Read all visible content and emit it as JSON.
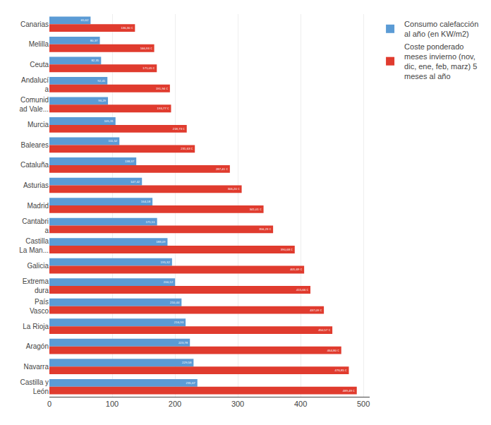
{
  "chart_data": {
    "type": "bar",
    "orientation": "horizontal",
    "categories": [
      "Canarias",
      "Melilla",
      "Ceuta",
      "Andalucí\na",
      "Comunid\nad Vale...",
      "Murcia",
      "Baleares",
      "Cataluña",
      "Asturias",
      "Madrid",
      "Cantabri\na",
      "Castilla\nLa Man...",
      "Galicia",
      "Extrema\ndura",
      "País\nVasco",
      "La Rioja",
      "Aragón",
      "Navarra",
      "Castilla y\nLeón"
    ],
    "series": [
      {
        "name": "Consumo calefacción\nal año (en KW/m2)",
        "color": "#5b9bd5",
        "values": [
          65.62,
          80.37,
          82.35,
          92.41,
          93.29,
          105.31,
          111.52,
          138.37,
          147.42,
          164.18,
          171.51,
          188.09,
          195.32,
          200.12,
          210.44,
          216.93,
          223.78,
          229.58,
          235.67
        ],
        "value_labels": [
          "65,62",
          "80,37",
          "82,35",
          "92,41",
          "93,29",
          "105,31",
          "111,52",
          "138,37",
          "147,42",
          "164,18",
          "171,51",
          "188,09",
          "195,32",
          "200,12",
          "210,44",
          "216,93",
          "223,78",
          "229,58",
          "235,67"
        ]
      },
      {
        "name": "Coste ponderado\nmeses invierno (nov,\ndic, ene, feb, marz) 5\nmeses al año",
        "color": "#e03b2e",
        "values": [
          136.3,
          166.93,
          171.05,
          191.94,
          193.77,
          218.73,
          231.63,
          287.41,
          306.2,
          341.01,
          356.23,
          390.68,
          405.69,
          415.66,
          437.09,
          450.57,
          464.8,
          476.85,
          489.49
        ],
        "value_labels": [
          "136,30 €",
          "166,93 €",
          "171,05 €",
          "191,94 €",
          "193,77 €",
          "218,73 €",
          "231,63 €",
          "287,41 €",
          "306,20 €",
          "341,01 €",
          "356,23 €",
          "390,68 €",
          "405,69 €",
          "415,66 €",
          "437,09 €",
          "450,57 €",
          "464,80 €",
          "476,85 €",
          "489,49 €"
        ]
      }
    ],
    "xlim": [
      0,
      510
    ],
    "xticks": [
      0,
      100,
      200,
      300,
      400,
      500
    ],
    "grid": true,
    "data_labels": true,
    "legend": "upper right"
  }
}
